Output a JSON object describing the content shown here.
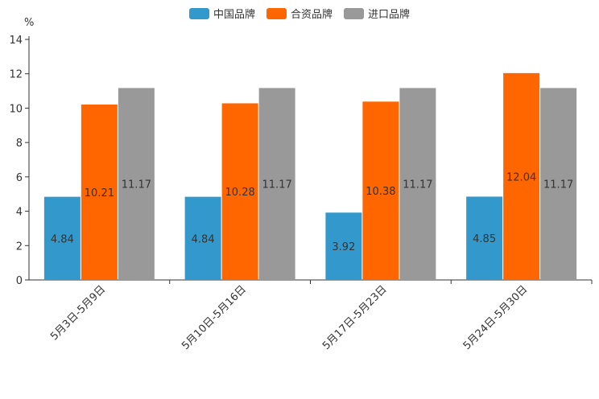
{
  "chart_data": {
    "type": "bar",
    "title": "",
    "xlabel": "",
    "ylabel": "%",
    "ylim": [
      0,
      14
    ],
    "yticks": [
      0,
      2,
      4,
      6,
      8,
      10,
      12,
      14
    ],
    "categories": [
      "5月3日-5月9日",
      "5月10日-5月16日",
      "5月17日-5月23日",
      "5月24日-5月30日"
    ],
    "series": [
      {
        "name": "中国品牌",
        "color": "#3399cc",
        "values": [
          4.84,
          4.84,
          3.92,
          4.85
        ],
        "labels": [
          "4.84",
          "4.84",
          "3.92",
          "4.85"
        ]
      },
      {
        "name": "合资品牌",
        "color": "#ff6600",
        "values": [
          10.21,
          10.28,
          10.38,
          12.04
        ],
        "labels": [
          "10.21",
          "10.28",
          "10.38",
          "12.04"
        ]
      },
      {
        "name": "进口品牌",
        "color": "#999999",
        "values": [
          11.17,
          11.17,
          11.17,
          11.17
        ],
        "labels": [
          "11.17",
          "11.17",
          "11.17",
          "11.17"
        ]
      }
    ],
    "legend_position": "top-center",
    "grid": false
  }
}
